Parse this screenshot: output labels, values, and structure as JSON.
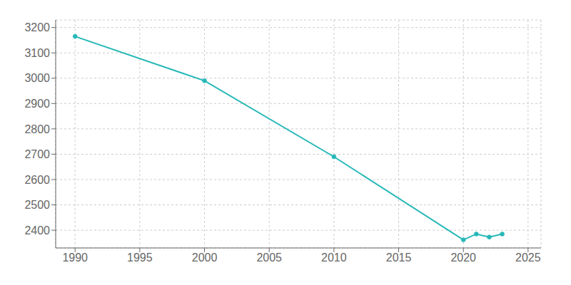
{
  "chart_data": {
    "type": "line",
    "x": [
      1990,
      2000,
      2010,
      2020,
      2021,
      2022,
      2023
    ],
    "values": [
      3165,
      2990,
      2690,
      2362,
      2385,
      2373,
      2385
    ],
    "color": "#27b8b8",
    "marker": "circle",
    "xlim": [
      1988.5,
      2026
    ],
    "ylim": [
      2330,
      3230
    ],
    "xticks": [
      1990,
      1995,
      2000,
      2005,
      2010,
      2015,
      2020,
      2025
    ],
    "yticks": [
      2400,
      2500,
      2600,
      2700,
      2800,
      2900,
      3000,
      3100,
      3200
    ],
    "grid": true
  }
}
